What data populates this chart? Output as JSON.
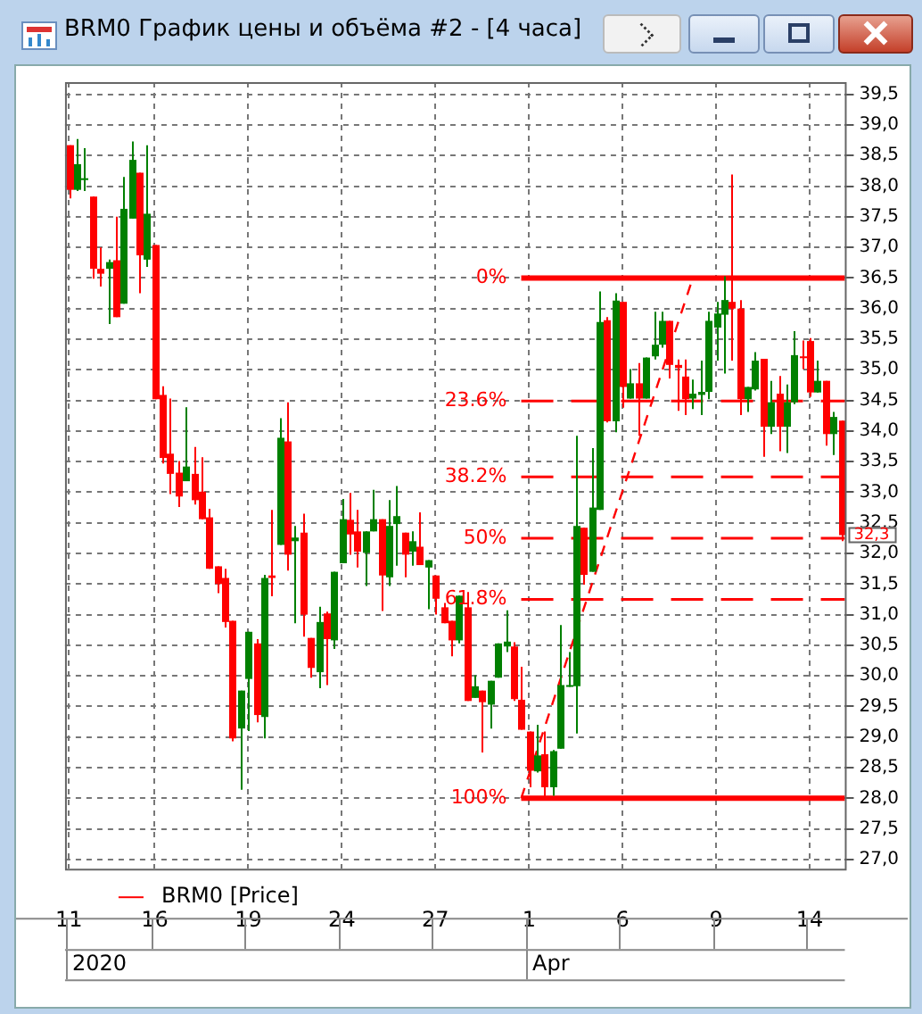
{
  "chart_data": {
    "type": "candlestick",
    "title": "BRM0 График цены и объёма #2 - [4 часа]",
    "categories": [
      "11",
      null,
      null,
      null,
      null,
      null,
      null,
      null,
      null,
      null,
      null,
      "16",
      null,
      null,
      null,
      null,
      null,
      null,
      null,
      null,
      null,
      null,
      null,
      "19",
      null,
      null,
      null,
      null,
      null,
      null,
      null,
      null,
      null,
      null,
      null,
      "24",
      null,
      null,
      null,
      null,
      null,
      null,
      null,
      null,
      null,
      null,
      null,
      "27",
      null,
      null,
      null,
      null,
      null,
      null,
      null,
      null,
      null,
      null,
      null,
      "1",
      null,
      null,
      null,
      null,
      null,
      null,
      null,
      null,
      null,
      null,
      null,
      "6",
      null,
      null,
      null,
      null,
      null,
      null,
      null,
      null,
      null,
      null,
      null,
      "9",
      null,
      null,
      null,
      null,
      null,
      null,
      null,
      null,
      null,
      null,
      null,
      "14",
      null,
      null,
      null,
      null
    ],
    "series": [
      {
        "name": "BRM0 [Price]",
        "color": "#ff0000",
        "ohlc": [
          [
            38.67,
            38.67,
            37.8,
            37.94
          ],
          [
            37.94,
            38.77,
            37.92,
            38.36
          ],
          [
            38.1,
            38.62,
            37.92,
            38.13
          ],
          [
            37.83,
            37.83,
            36.49,
            36.65
          ],
          [
            36.65,
            37.0,
            36.36,
            36.57
          ],
          [
            36.65,
            36.8,
            35.75,
            36.76
          ],
          [
            36.79,
            37.5,
            35.86,
            35.86
          ],
          [
            36.08,
            38.15,
            36.08,
            37.63
          ],
          [
            37.47,
            38.73,
            37.47,
            38.43
          ],
          [
            38.22,
            38.22,
            36.25,
            36.87
          ],
          [
            36.8,
            38.67,
            36.68,
            37.55
          ],
          [
            37.04,
            37.04,
            34.52,
            34.52
          ],
          [
            34.59,
            34.73,
            33.47,
            33.56
          ],
          [
            33.63,
            34.53,
            32.97,
            33.3
          ],
          [
            33.32,
            33.51,
            32.76,
            32.93
          ],
          [
            33.18,
            34.39,
            33.18,
            33.42
          ],
          [
            33.3,
            33.74,
            32.8,
            32.87
          ],
          [
            33.01,
            33.57,
            32.56,
            32.56
          ],
          [
            32.59,
            32.73,
            31.75,
            31.75
          ],
          [
            31.79,
            31.79,
            31.35,
            31.5
          ],
          [
            31.6,
            31.75,
            30.79,
            30.88
          ],
          [
            30.9,
            30.9,
            28.93,
            28.98
          ],
          [
            29.14,
            29.76,
            28.14,
            29.76
          ],
          [
            29.95,
            30.72,
            29.1,
            30.72
          ],
          [
            30.53,
            30.6,
            29.24,
            29.36
          ],
          [
            29.33,
            31.65,
            28.98,
            31.6
          ],
          [
            31.64,
            32.71,
            31.3,
            31.6
          ],
          [
            32.14,
            34.21,
            32.14,
            33.89
          ],
          [
            33.83,
            34.47,
            31.72,
            31.98
          ],
          [
            32.2,
            32.45,
            30.86,
            32.26
          ],
          [
            32.34,
            32.65,
            30.64,
            31.0
          ],
          [
            30.62,
            30.62,
            29.97,
            30.13
          ],
          [
            30.06,
            31.13,
            29.8,
            30.88
          ],
          [
            31.02,
            31.05,
            29.85,
            30.6
          ],
          [
            30.58,
            31.7,
            30.44,
            31.7
          ],
          [
            31.84,
            32.89,
            31.84,
            32.56
          ],
          [
            32.55,
            32.99,
            31.98,
            32.31
          ],
          [
            32.36,
            32.71,
            31.77,
            32.03
          ],
          [
            32.01,
            32.36,
            31.47,
            32.36
          ],
          [
            32.36,
            33.04,
            32.36,
            32.56
          ],
          [
            32.56,
            32.56,
            31.06,
            31.64
          ],
          [
            31.61,
            32.87,
            31.47,
            32.45
          ],
          [
            32.48,
            33.1,
            31.8,
            32.61
          ],
          [
            32.34,
            32.34,
            31.61,
            31.98
          ],
          [
            32.03,
            32.36,
            31.8,
            32.2
          ],
          [
            32.11,
            32.67,
            31.81,
            31.81
          ],
          [
            31.77,
            31.89,
            31.09,
            31.89
          ],
          [
            31.64,
            31.64,
            31.0,
            31.26
          ],
          [
            31.12,
            31.19,
            30.86,
            30.86
          ],
          [
            30.9,
            30.9,
            30.32,
            30.58
          ],
          [
            30.58,
            31.31,
            30.53,
            31.31
          ],
          [
            31.12,
            31.37,
            29.59,
            29.59
          ],
          [
            29.64,
            30.01,
            29.64,
            29.83
          ],
          [
            29.76,
            29.76,
            28.75,
            29.57
          ],
          [
            29.53,
            29.92,
            29.14,
            29.92
          ],
          [
            29.97,
            30.53,
            29.97,
            30.53
          ],
          [
            30.48,
            31.07,
            30.39,
            30.56
          ],
          [
            30.48,
            30.55,
            29.59,
            29.62
          ],
          [
            29.61,
            30.15,
            29.12,
            29.12
          ],
          [
            29.09,
            29.09,
            28.18,
            28.45
          ],
          [
            28.44,
            29.2,
            28.42,
            28.7
          ],
          [
            28.72,
            29.09,
            28.0,
            28.18
          ],
          [
            28.18,
            28.79,
            28.04,
            28.77
          ],
          [
            28.81,
            30.83,
            28.81,
            29.85
          ],
          [
            29.82,
            30.39,
            29.82,
            29.85
          ],
          [
            29.83,
            33.92,
            29.06,
            32.45
          ],
          [
            32.42,
            32.42,
            31.49,
            31.65
          ],
          [
            31.7,
            33.72,
            31.7,
            32.75
          ],
          [
            32.71,
            36.28,
            32.71,
            35.78
          ],
          [
            35.81,
            35.86,
            34.14,
            34.16
          ],
          [
            34.16,
            36.25,
            33.98,
            36.13
          ],
          [
            36.11,
            36.11,
            34.38,
            34.72
          ],
          [
            34.53,
            35.01,
            34.53,
            34.78
          ],
          [
            34.78,
            35.11,
            33.92,
            34.53
          ],
          [
            34.53,
            35.2,
            34.53,
            35.2
          ],
          [
            35.22,
            35.95,
            35.17,
            35.41
          ],
          [
            35.41,
            35.95,
            35.36,
            35.8
          ],
          [
            35.8,
            35.8,
            34.86,
            35.08
          ],
          [
            35.08,
            35.17,
            34.33,
            35.03
          ],
          [
            34.89,
            35.17,
            34.26,
            34.52
          ],
          [
            34.53,
            34.84,
            34.36,
            34.61
          ],
          [
            34.59,
            35.15,
            34.26,
            34.64
          ],
          [
            34.64,
            35.95,
            34.52,
            35.8
          ],
          [
            35.69,
            36.11,
            35.15,
            35.92
          ],
          [
            35.9,
            36.53,
            34.94,
            36.14
          ],
          [
            36.11,
            38.19,
            35.15,
            36.0
          ],
          [
            36.0,
            36.14,
            34.26,
            34.52
          ],
          [
            34.52,
            34.72,
            34.31,
            34.72
          ],
          [
            34.68,
            35.29,
            34.66,
            35.15
          ],
          [
            35.18,
            35.18,
            33.58,
            34.07
          ],
          [
            34.07,
            34.82,
            33.95,
            34.47
          ],
          [
            34.61,
            34.9,
            33.67,
            34.07
          ],
          [
            34.07,
            34.76,
            33.64,
            34.47
          ],
          [
            34.47,
            35.63,
            34.44,
            35.24
          ],
          [
            35.22,
            35.48,
            35.01,
            35.19
          ],
          [
            35.47,
            35.52,
            34.56,
            34.63
          ],
          [
            34.63,
            35.15,
            34.63,
            34.82
          ],
          [
            34.82,
            34.82,
            33.76,
            33.95
          ],
          [
            33.95,
            34.31,
            33.61,
            34.23
          ],
          [
            34.17,
            34.17,
            32.2,
            32.3
          ]
        ],
        "colors": [
          "#ff0000",
          "#008000",
          "#008000",
          "#ff0000",
          "#ff0000",
          "#008000",
          "#ff0000",
          "#008000",
          "#008000",
          "#ff0000",
          "#008000",
          "#ff0000",
          "#ff0000",
          "#ff0000",
          "#ff0000",
          "#008000",
          "#ff0000",
          "#ff0000",
          "#ff0000",
          "#ff0000",
          "#ff0000",
          "#ff0000",
          "#008000",
          "#008000",
          "#ff0000",
          "#008000",
          "#ff0000",
          "#008000",
          "#ff0000",
          "#008000",
          "#ff0000",
          "#ff0000",
          "#008000",
          "#ff0000",
          "#008000",
          "#008000",
          "#ff0000",
          "#ff0000",
          "#008000",
          "#008000",
          "#ff0000",
          "#008000",
          "#008000",
          "#ff0000",
          "#008000",
          "#ff0000",
          "#008000",
          "#ff0000",
          "#ff0000",
          "#ff0000",
          "#008000",
          "#ff0000",
          "#008000",
          "#ff0000",
          "#008000",
          "#008000",
          "#008000",
          "#ff0000",
          "#ff0000",
          "#ff0000",
          "#008000",
          "#ff0000",
          "#008000",
          "#008000",
          "#008000",
          "#008000",
          "#ff0000",
          "#008000",
          "#008000",
          "#ff0000",
          "#008000",
          "#ff0000",
          "#008000",
          "#ff0000",
          "#008000",
          "#008000",
          "#008000",
          "#ff0000",
          "#ff0000",
          "#ff0000",
          "#008000",
          "#008000",
          "#008000",
          "#008000",
          "#008000",
          "#ff0000",
          "#ff0000",
          "#008000",
          "#008000",
          "#ff0000",
          "#008000",
          "#ff0000",
          "#008000",
          "#008000",
          "#ff0000",
          "#ff0000",
          "#008000",
          "#ff0000",
          "#008000",
          "#ff0000"
        ]
      },
      {
        "type": "line",
        "color": "#ff0000",
        "line_style": "dashed",
        "values": [
          null,
          null,
          null,
          null,
          null,
          null,
          null,
          null,
          null,
          null,
          null,
          null,
          null,
          null,
          null,
          null,
          null,
          null,
          null,
          null,
          null,
          null,
          null,
          null,
          null,
          null,
          null,
          null,
          null,
          null,
          null,
          null,
          null,
          null,
          null,
          null,
          null,
          null,
          null,
          null,
          null,
          null,
          null,
          null,
          null,
          null,
          null,
          null,
          null,
          null,
          null,
          null,
          null,
          null,
          null,
          null,
          null,
          null,
          28.0,
          null,
          null,
          null,
          null,
          null,
          null,
          null,
          null,
          null,
          null,
          null,
          null,
          null,
          null,
          null,
          null,
          null,
          null,
          null,
          null,
          null,
          36.5,
          null,
          null,
          null,
          null,
          null,
          null,
          null,
          null,
          null,
          null,
          null,
          null,
          null,
          null,
          null,
          null,
          null,
          null,
          null
        ]
      }
    ],
    "ylim": [
      26.85,
      39.7
    ],
    "yticks": [
      {
        "value": 27,
        "label": "27,0"
      },
      {
        "value": 27.5,
        "label": "27,5"
      },
      {
        "value": 28,
        "label": "28,0"
      },
      {
        "value": 28.5,
        "label": "28,5"
      },
      {
        "value": 29,
        "label": "29,0"
      },
      {
        "value": 29.5,
        "label": "29,5"
      },
      {
        "value": 30,
        "label": "30,0"
      },
      {
        "value": 30.5,
        "label": "30,5"
      },
      {
        "value": 31,
        "label": "31,0"
      },
      {
        "value": 31.5,
        "label": "31,5"
      },
      {
        "value": 32,
        "label": "32,0"
      },
      {
        "value": 32.5,
        "label": "32,5"
      },
      {
        "value": 33,
        "label": "33,0"
      },
      {
        "value": 33.5,
        "label": "33,5"
      },
      {
        "value": 34,
        "label": "34,0"
      },
      {
        "value": 34.5,
        "label": "34,5"
      },
      {
        "value": 35,
        "label": "35,0"
      },
      {
        "value": 35.5,
        "label": "35,5"
      },
      {
        "value": 36,
        "label": "36,0"
      },
      {
        "value": 36.5,
        "label": "36,5"
      },
      {
        "value": 37,
        "label": "37,0"
      },
      {
        "value": 37.5,
        "label": "37,5"
      },
      {
        "value": 38,
        "label": "38,0"
      },
      {
        "value": 38.5,
        "label": "38,5"
      },
      {
        "value": 39,
        "label": "39,0"
      },
      {
        "value": 39.5,
        "label": "39,5"
      }
    ],
    "ref_lines": [
      {
        "axis": "y",
        "value": 36.5,
        "color": "#ff0000",
        "line_style": "solid"
      },
      {
        "axis": "y",
        "value": 34.49,
        "color": "#ff0000",
        "line_style": "dashed"
      },
      {
        "axis": "y",
        "value": 33.25,
        "color": "#ff0000",
        "line_style": "dashed"
      },
      {
        "axis": "y",
        "value": 32.25,
        "color": "#ff0000",
        "line_style": "dashed"
      },
      {
        "axis": "y",
        "value": 31.25,
        "color": "#ff0000",
        "line_style": "dashed"
      },
      {
        "axis": "y",
        "value": 28.0,
        "color": "#ff0000",
        "line_style": "solid"
      }
    ],
    "annotations": [
      "2020",
      "Apr",
      "0%",
      "23.6%",
      "38.2%",
      "50%",
      "61.8%",
      "100%",
      {
        "text": "32,3",
        "y": 32.3
      }
    ],
    "grid": true,
    "legend": "bottom"
  }
}
